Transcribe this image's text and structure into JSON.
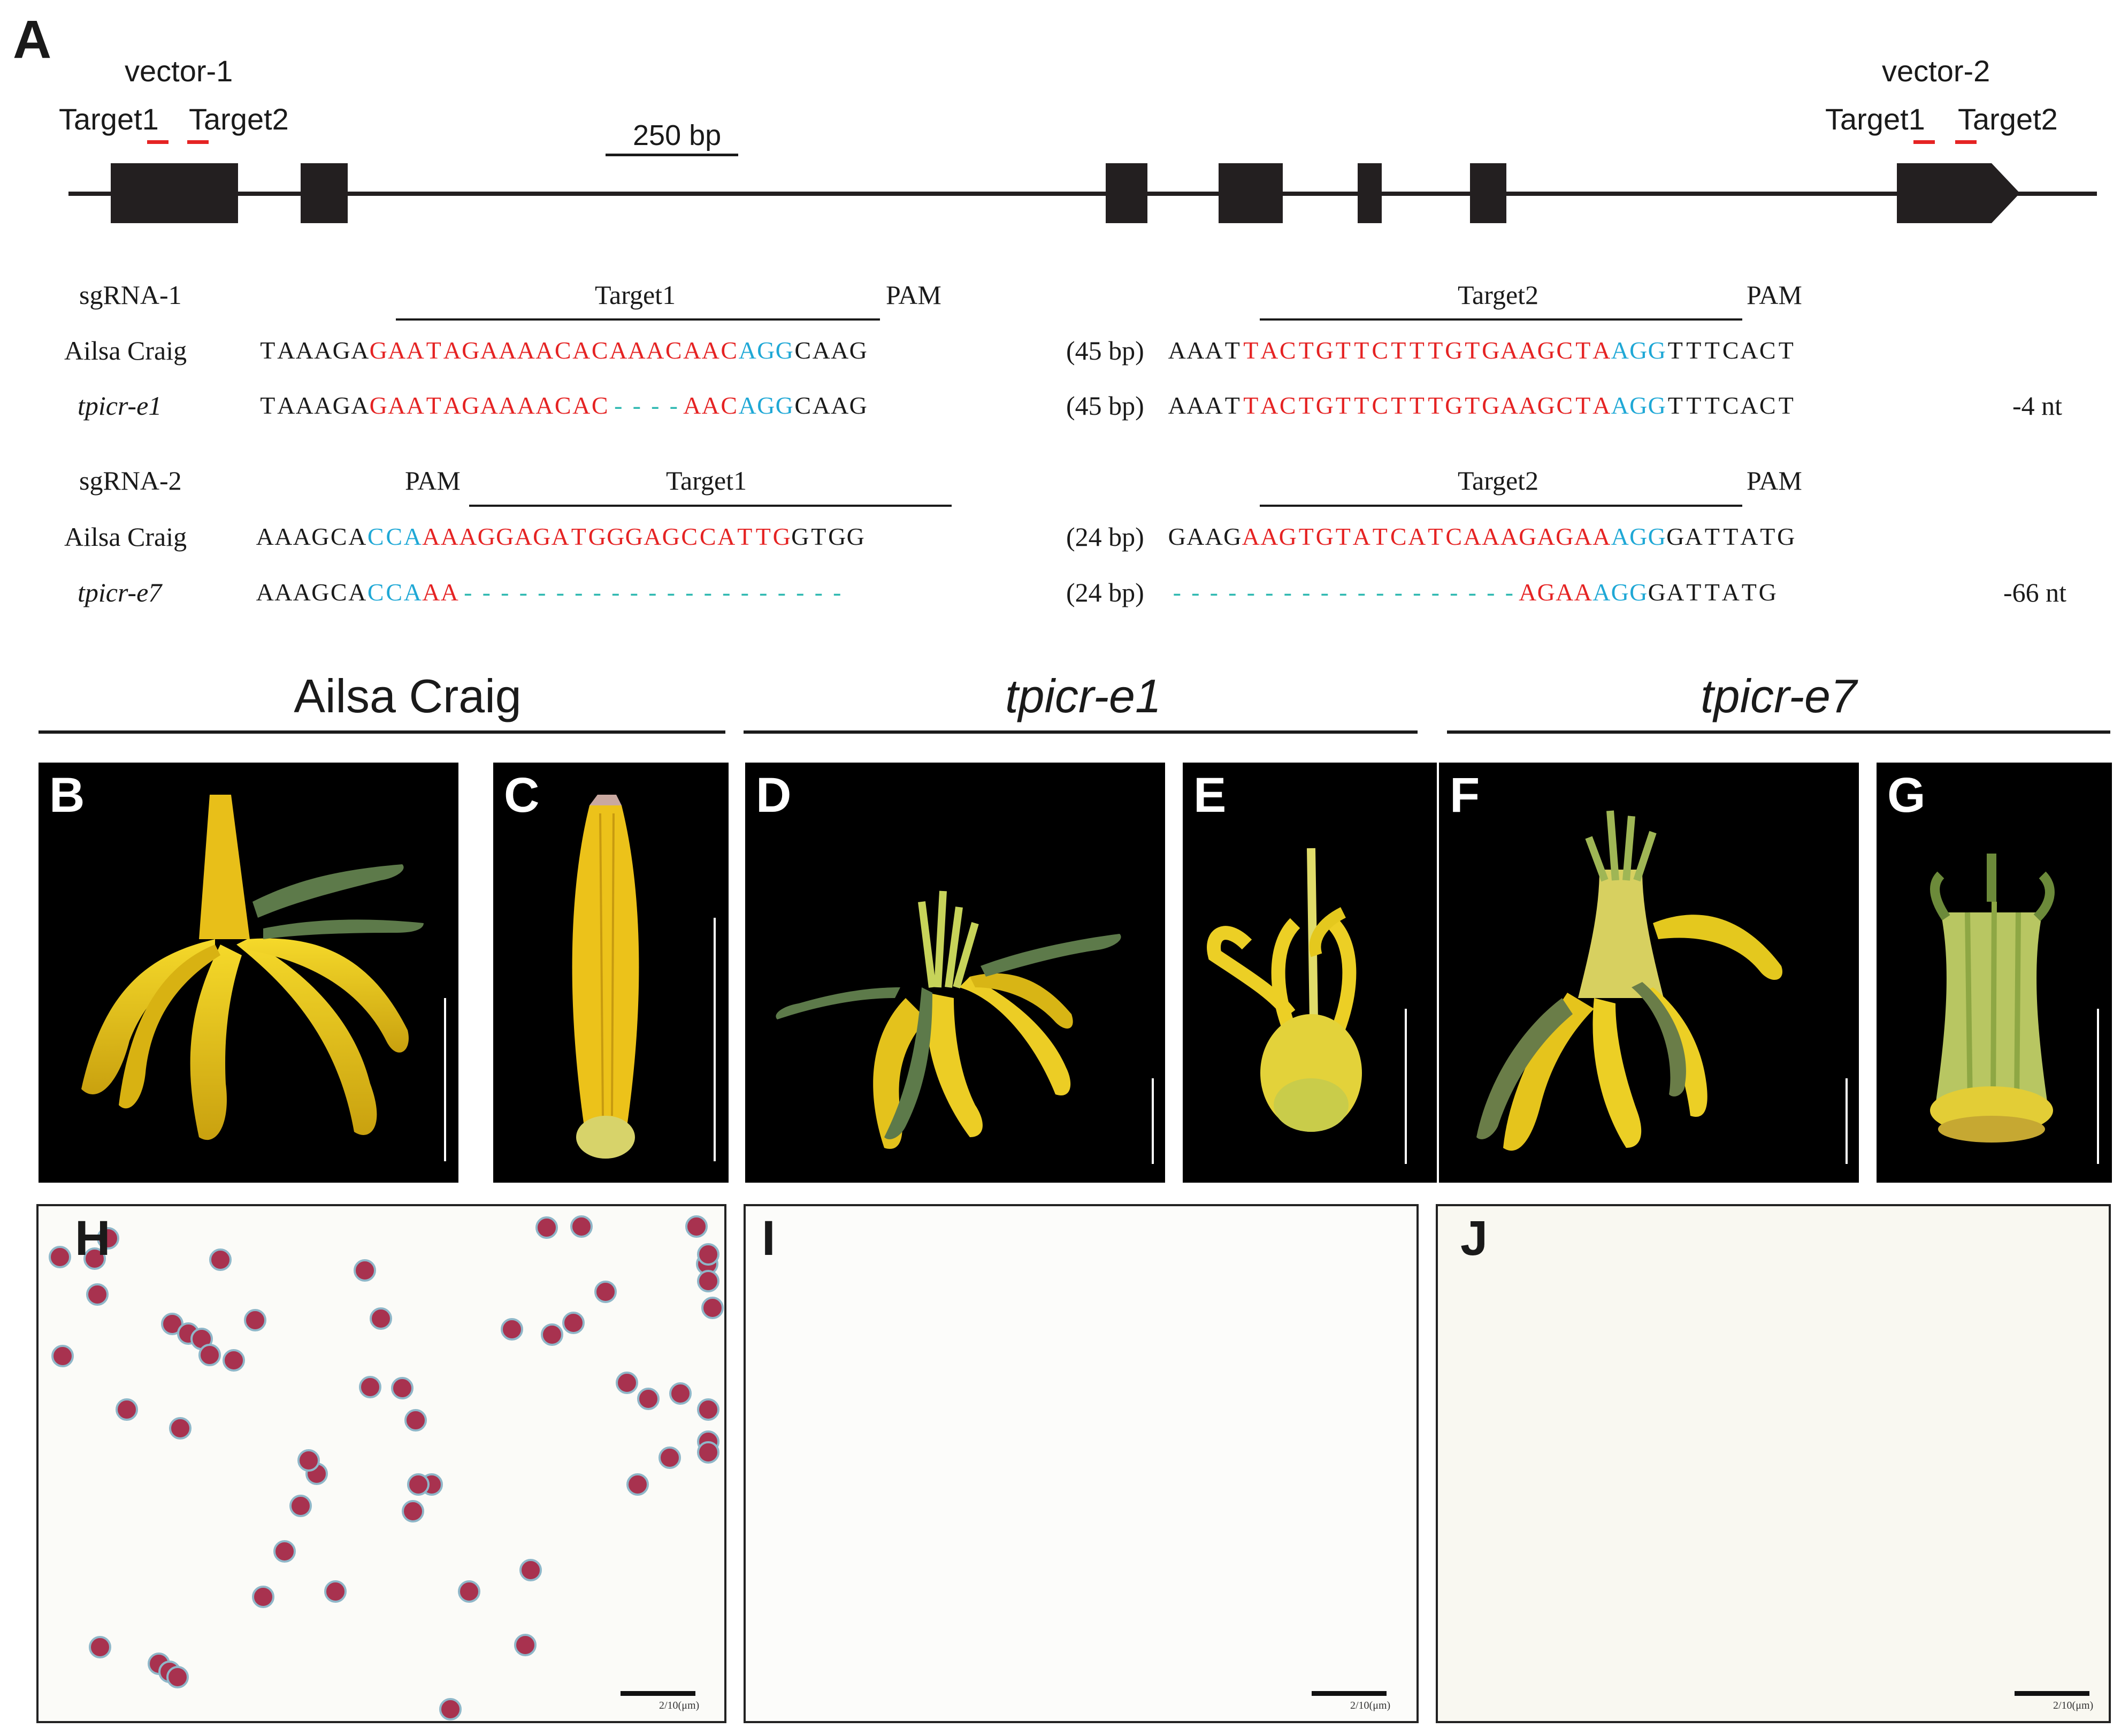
{
  "panel_A": {
    "letter": "A",
    "vector1_label": "vector-1",
    "vector2_label": "vector-2",
    "target1_label": "Target1",
    "target2_label": "Target2",
    "scale_label": "250 bp",
    "sgrna1": {
      "label": "sgRNA-1",
      "target1": "Target1",
      "pam1": "PAM",
      "target2": "Target2",
      "pam2": "PAM",
      "wt_label": "Ailsa Craig",
      "mut_label": "tpicr-e1",
      "gap": "(45 bp)",
      "mut_change": "-4 nt",
      "wt_left": [
        [
          "TAAAGA",
          "k"
        ],
        [
          "GAATAGAAAACACAAACAAC",
          "r"
        ],
        [
          "AGG",
          "c"
        ],
        [
          "CAAG",
          "k"
        ]
      ],
      "mut_left": [
        [
          "TAAAGA",
          "k"
        ],
        [
          "GAATAGAAAACAC",
          "r"
        ],
        [
          "----",
          "d"
        ],
        [
          "AAC",
          "r"
        ],
        [
          "AGG",
          "c"
        ],
        [
          "CAAG",
          "k"
        ]
      ],
      "wt_right": [
        [
          "AAAT",
          "k"
        ],
        [
          "TACTGTTCTTTGTGAAGCTA",
          "r"
        ],
        [
          "AGG",
          "c"
        ],
        [
          "TTTCACT",
          "k"
        ]
      ],
      "mut_right": [
        [
          "AAAT",
          "k"
        ],
        [
          "TACTGTTCTTTGTGAAGCTA",
          "r"
        ],
        [
          "AGG",
          "c"
        ],
        [
          "TTTCACT",
          "k"
        ]
      ]
    },
    "sgrna2": {
      "label": "sgRNA-2",
      "pam1": "PAM",
      "target1": "Target1",
      "target2": "Target2",
      "pam2": "PAM",
      "wt_label": "Ailsa Craig",
      "mut_label": "tpicr-e7",
      "gap": "(24 bp)",
      "mut_change": "-66 nt",
      "wt_left": [
        [
          "AAAGCA",
          "k"
        ],
        [
          "CCA",
          "c"
        ],
        [
          "AAAGGAGATGGGAGCCATTG",
          "r"
        ],
        [
          "GTGG",
          "k"
        ]
      ],
      "mut_left": [
        [
          "AAAGCA",
          "k"
        ],
        [
          "CCA",
          "c"
        ],
        [
          "AA",
          "r"
        ],
        [
          "---------------------",
          "d"
        ]
      ],
      "wt_right": [
        [
          "GAAG",
          "k"
        ],
        [
          "AAGTGTATCATCAAAGAGAA",
          "r"
        ],
        [
          "AGG",
          "c"
        ],
        [
          "GATTATG",
          "k"
        ]
      ],
      "mut_right": [
        [
          "-------------------",
          "d"
        ],
        [
          "AGAA",
          "r"
        ],
        [
          "AGG",
          "c"
        ],
        [
          "GATTATG",
          "k"
        ]
      ]
    }
  },
  "genotypes": {
    "g1": "Ailsa Craig",
    "g2": "tpicr-e1",
    "g3": "tpicr-e7"
  },
  "panels": {
    "B": "B",
    "C": "C",
    "D": "D",
    "E": "E",
    "F": "F",
    "G": "G",
    "H": "H",
    "I": "I",
    "J": "J"
  },
  "micro_scale_label": "2/10(μm)",
  "colors": {
    "target_red": "#e52323",
    "pam_cyan": "#1fa8d6",
    "deletion_dash": "#2bb7b0",
    "exon": "#231f20",
    "petal_yellow": "#f2d21a",
    "pollen_stain": "#a8324f"
  }
}
